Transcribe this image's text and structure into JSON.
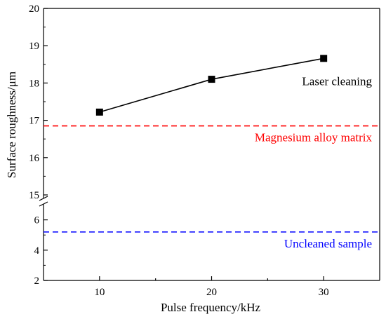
{
  "chart_data": {
    "type": "line",
    "title": "",
    "xlabel": "Pulse frequency/kHz",
    "ylabel": "Surface roughness/μm",
    "xlim": [
      5,
      35
    ],
    "x_ticks": [
      10,
      20,
      30
    ],
    "x_tick_labels": [
      "10",
      "20",
      "30"
    ],
    "y_axis_break": true,
    "y_segments": [
      {
        "name": "lower",
        "ylim": [
          2,
          7
        ],
        "tick_labels": [
          "2",
          "4",
          "6"
        ],
        "ticks": [
          2,
          4,
          6
        ]
      },
      {
        "name": "upper",
        "ylim": [
          15,
          20
        ],
        "tick_labels": [
          "15",
          "16",
          "17",
          "18",
          "19",
          "20"
        ],
        "ticks": [
          15,
          16,
          17,
          18,
          19,
          20
        ]
      }
    ],
    "grid": false,
    "series": [
      {
        "name": "Laser cleaning",
        "x": [
          10,
          20,
          30
        ],
        "y": [
          17.22,
          18.1,
          18.66
        ],
        "color": "#000000",
        "marker": "square"
      }
    ],
    "reference_lines": [
      {
        "label": "Magnesium alloy matrix",
        "y": 16.85,
        "color": "#ff0000",
        "style": "dashed"
      },
      {
        "label": "Uncleaned sample",
        "y": 5.2,
        "color": "#0000ff",
        "style": "dashed"
      }
    ]
  }
}
